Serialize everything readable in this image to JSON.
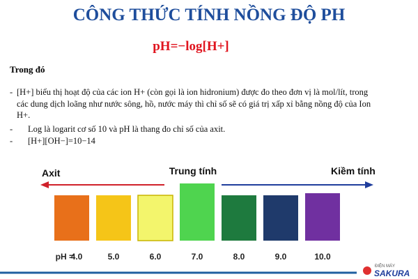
{
  "header": {
    "title": "CÔNG THỨC TÍNH NỒNG ĐỘ PH",
    "formula": "pH=−log[H+]"
  },
  "section": {
    "heading": "Trong đó",
    "items": [
      {
        "marker": "-",
        "text": "[H+] biểu thị hoạt độ của các ion H+ (còn gọi là ion hidronium) được đo theo đơn vị là mol/lít, trong các dung dịch loãng như nước sông, hồ, nước máy thì chỉ số sẽ có giá trị xấp xỉ bằng nồng độ của Ion H+."
      },
      {
        "marker": "-",
        "text": "Log là logarit cơ số 10 và pH là thang đo chỉ số của axit."
      },
      {
        "marker": "-",
        "text": "[H+][OH−]=10−14"
      }
    ]
  },
  "scale": {
    "left": "Axit",
    "center": "Trung tính",
    "right": "Kiềm tính",
    "prefix": "pH =",
    "levels": [
      {
        "label": "4.0",
        "color": "#e8701a"
      },
      {
        "label": "5.0",
        "color": "#f5c518"
      },
      {
        "label": "6.0",
        "color": "#f3f56c"
      },
      {
        "label": "7.0",
        "color": "#4fd44f"
      },
      {
        "label": "8.0",
        "color": "#1e7a3e"
      },
      {
        "label": "9.0",
        "color": "#1f3a6b"
      },
      {
        "label": "10.0",
        "color": "#7030a0"
      }
    ]
  },
  "logo": {
    "small": "ĐIỆN MÁY",
    "brand": "SAKURA"
  }
}
